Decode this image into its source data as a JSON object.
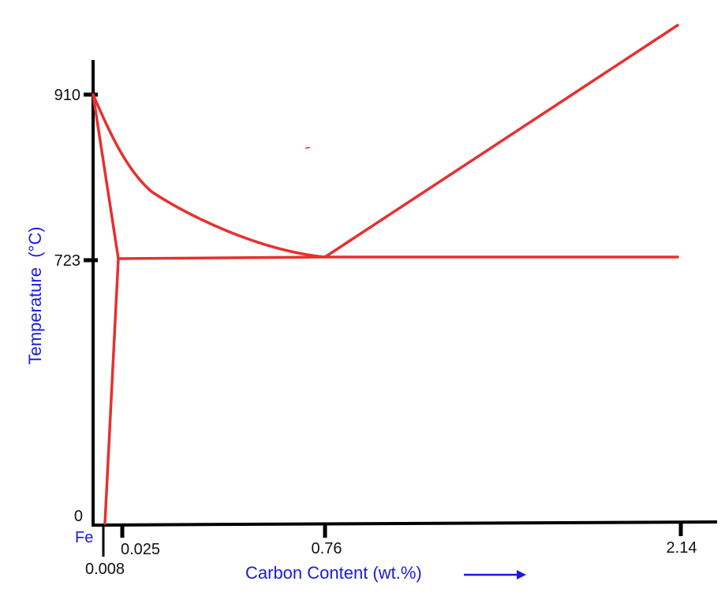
{
  "diagram": {
    "y_axis_label": "Temperature  (°C)",
    "x_axis_label": "Carbon Content (wt.%)",
    "origin_label": "Fe",
    "y_ticks": [
      {
        "label": "910",
        "value": 910
      },
      {
        "label": "723",
        "value": 723
      },
      {
        "label": "0",
        "value": 0
      }
    ],
    "x_ticks": [
      {
        "label": "0.008",
        "value": 0.008
      },
      {
        "label": "0.025",
        "value": 0.025
      },
      {
        "label": "0.76",
        "value": 0.76
      },
      {
        "label": "2.14",
        "value": 2.14
      }
    ],
    "colors": {
      "axis": "#000000",
      "phase_lines": "#e63030",
      "labels": "#1a1ae6"
    }
  }
}
